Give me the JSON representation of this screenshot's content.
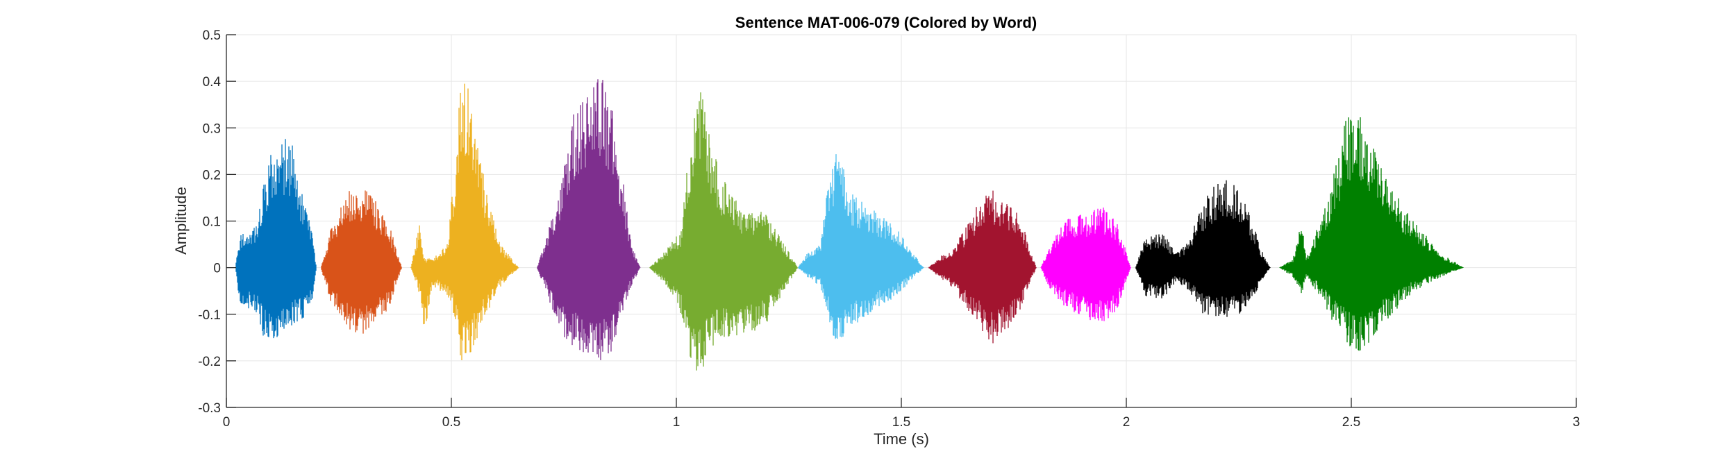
{
  "chart_data": {
    "type": "line",
    "title": "Sentence MAT-006-079 (Colored by Word)",
    "xlabel": "Time (s)",
    "ylabel": "Amplitude",
    "xlim": [
      0,
      3
    ],
    "ylim": [
      -0.3,
      0.5
    ],
    "xticks": [
      0,
      0.5,
      1,
      1.5,
      2,
      2.5,
      3
    ],
    "xtick_labels": [
      "0",
      "0.5",
      "1",
      "1.5",
      "2",
      "2.5",
      "3"
    ],
    "yticks": [
      -0.3,
      -0.2,
      -0.1,
      0,
      0.1,
      0.2,
      0.3,
      0.4,
      0.5
    ],
    "ytick_labels": [
      "-0.3",
      "-0.2",
      "-0.1",
      "0",
      "0.1",
      "0.2",
      "0.3",
      "0.4",
      "0.5"
    ],
    "grid": true,
    "series": [
      {
        "color": "#0072BD",
        "start": 0.02,
        "end": 0.2,
        "envelope": [
          [
            0.02,
            0.0,
            0.0
          ],
          [
            0.03,
            0.07,
            -0.08
          ],
          [
            0.07,
            0.1,
            -0.1
          ],
          [
            0.08,
            0.18,
            -0.15
          ],
          [
            0.1,
            0.25,
            -0.16
          ],
          [
            0.13,
            0.28,
            -0.14
          ],
          [
            0.15,
            0.26,
            -0.12
          ],
          [
            0.17,
            0.15,
            -0.11
          ],
          [
            0.19,
            0.08,
            -0.08
          ],
          [
            0.2,
            0.0,
            0.0
          ]
        ]
      },
      {
        "color": "#D95319",
        "start": 0.21,
        "end": 0.39,
        "envelope": [
          [
            0.21,
            0.0,
            0.0
          ],
          [
            0.23,
            0.08,
            -0.07
          ],
          [
            0.27,
            0.17,
            -0.13
          ],
          [
            0.3,
            0.18,
            -0.15
          ],
          [
            0.33,
            0.15,
            -0.12
          ],
          [
            0.36,
            0.1,
            -0.09
          ],
          [
            0.39,
            0.0,
            0.0
          ]
        ]
      },
      {
        "color": "#EDB120",
        "start": 0.41,
        "end": 0.65,
        "envelope": [
          [
            0.41,
            0.0,
            0.0
          ],
          [
            0.43,
            0.1,
            -0.06
          ],
          [
            0.44,
            0.02,
            -0.14
          ],
          [
            0.46,
            0.02,
            -0.04
          ],
          [
            0.49,
            0.05,
            -0.06
          ],
          [
            0.51,
            0.25,
            -0.12
          ],
          [
            0.52,
            0.45,
            -0.21
          ],
          [
            0.54,
            0.42,
            -0.2
          ],
          [
            0.56,
            0.3,
            -0.15
          ],
          [
            0.58,
            0.15,
            -0.1
          ],
          [
            0.61,
            0.05,
            -0.04
          ],
          [
            0.65,
            0.0,
            0.0
          ]
        ]
      },
      {
        "color": "#7E2F8E",
        "start": 0.69,
        "end": 0.92,
        "envelope": [
          [
            0.69,
            0.0,
            0.0
          ],
          [
            0.71,
            0.06,
            -0.05
          ],
          [
            0.74,
            0.18,
            -0.14
          ],
          [
            0.77,
            0.33,
            -0.17
          ],
          [
            0.8,
            0.37,
            -0.2
          ],
          [
            0.83,
            0.43,
            -0.21
          ],
          [
            0.86,
            0.34,
            -0.18
          ],
          [
            0.88,
            0.2,
            -0.1
          ],
          [
            0.9,
            0.05,
            -0.04
          ],
          [
            0.92,
            0.0,
            0.0
          ]
        ]
      },
      {
        "color": "#77AC30",
        "start": 0.94,
        "end": 1.27,
        "envelope": [
          [
            0.94,
            0.0,
            0.0
          ],
          [
            0.97,
            0.03,
            -0.03
          ],
          [
            1.01,
            0.08,
            -0.1
          ],
          [
            1.03,
            0.28,
            -0.2
          ],
          [
            1.05,
            0.43,
            -0.25
          ],
          [
            1.07,
            0.3,
            -0.18
          ],
          [
            1.1,
            0.2,
            -0.15
          ],
          [
            1.15,
            0.12,
            -0.15
          ],
          [
            1.2,
            0.12,
            -0.12
          ],
          [
            1.24,
            0.05,
            -0.05
          ],
          [
            1.27,
            0.0,
            0.0
          ]
        ]
      },
      {
        "color": "#4DBEEE",
        "start": 1.27,
        "end": 1.55,
        "envelope": [
          [
            1.27,
            0.0,
            0.0
          ],
          [
            1.29,
            0.03,
            -0.02
          ],
          [
            1.32,
            0.05,
            -0.04
          ],
          [
            1.34,
            0.2,
            -0.12
          ],
          [
            1.36,
            0.26,
            -0.18
          ],
          [
            1.39,
            0.16,
            -0.13
          ],
          [
            1.43,
            0.13,
            -0.1
          ],
          [
            1.48,
            0.1,
            -0.07
          ],
          [
            1.52,
            0.04,
            -0.03
          ],
          [
            1.55,
            0.0,
            0.0
          ]
        ]
      },
      {
        "color": "#A2142F",
        "start": 1.56,
        "end": 1.8,
        "envelope": [
          [
            1.56,
            0.0,
            0.0
          ],
          [
            1.58,
            0.02,
            -0.02
          ],
          [
            1.61,
            0.04,
            -0.04
          ],
          [
            1.64,
            0.08,
            -0.08
          ],
          [
            1.67,
            0.14,
            -0.12
          ],
          [
            1.7,
            0.17,
            -0.17
          ],
          [
            1.73,
            0.14,
            -0.14
          ],
          [
            1.76,
            0.13,
            -0.1
          ],
          [
            1.78,
            0.06,
            -0.05
          ],
          [
            1.8,
            0.0,
            0.0
          ]
        ]
      },
      {
        "color": "#FF00FF",
        "start": 1.81,
        "end": 2.01,
        "envelope": [
          [
            1.81,
            0.0,
            0.0
          ],
          [
            1.83,
            0.05,
            -0.05
          ],
          [
            1.87,
            0.11,
            -0.09
          ],
          [
            1.91,
            0.12,
            -0.11
          ],
          [
            1.95,
            0.13,
            -0.12
          ],
          [
            1.98,
            0.1,
            -0.09
          ],
          [
            2.01,
            0.0,
            0.0
          ]
        ]
      },
      {
        "color": "#000000",
        "start": 2.02,
        "end": 2.32,
        "envelope": [
          [
            2.02,
            0.0,
            0.0
          ],
          [
            2.04,
            0.06,
            -0.06
          ],
          [
            2.08,
            0.08,
            -0.07
          ],
          [
            2.11,
            0.03,
            -0.03
          ],
          [
            2.14,
            0.06,
            -0.05
          ],
          [
            2.17,
            0.14,
            -0.1
          ],
          [
            2.21,
            0.2,
            -0.11
          ],
          [
            2.25,
            0.17,
            -0.1
          ],
          [
            2.28,
            0.1,
            -0.07
          ],
          [
            2.3,
            0.04,
            -0.03
          ],
          [
            2.32,
            0.0,
            0.0
          ]
        ]
      },
      {
        "color": "#008000",
        "start": 2.34,
        "end": 2.75,
        "envelope": [
          [
            2.34,
            0.0,
            0.0
          ],
          [
            2.37,
            0.02,
            -0.02
          ],
          [
            2.39,
            0.1,
            -0.07
          ],
          [
            2.4,
            0.02,
            -0.02
          ],
          [
            2.43,
            0.1,
            -0.06
          ],
          [
            2.46,
            0.2,
            -0.12
          ],
          [
            2.49,
            0.33,
            -0.16
          ],
          [
            2.51,
            0.35,
            -0.19
          ],
          [
            2.54,
            0.28,
            -0.16
          ],
          [
            2.59,
            0.17,
            -0.1
          ],
          [
            2.64,
            0.1,
            -0.05
          ],
          [
            2.7,
            0.03,
            -0.02
          ],
          [
            2.75,
            0.0,
            0.0
          ]
        ]
      }
    ]
  }
}
